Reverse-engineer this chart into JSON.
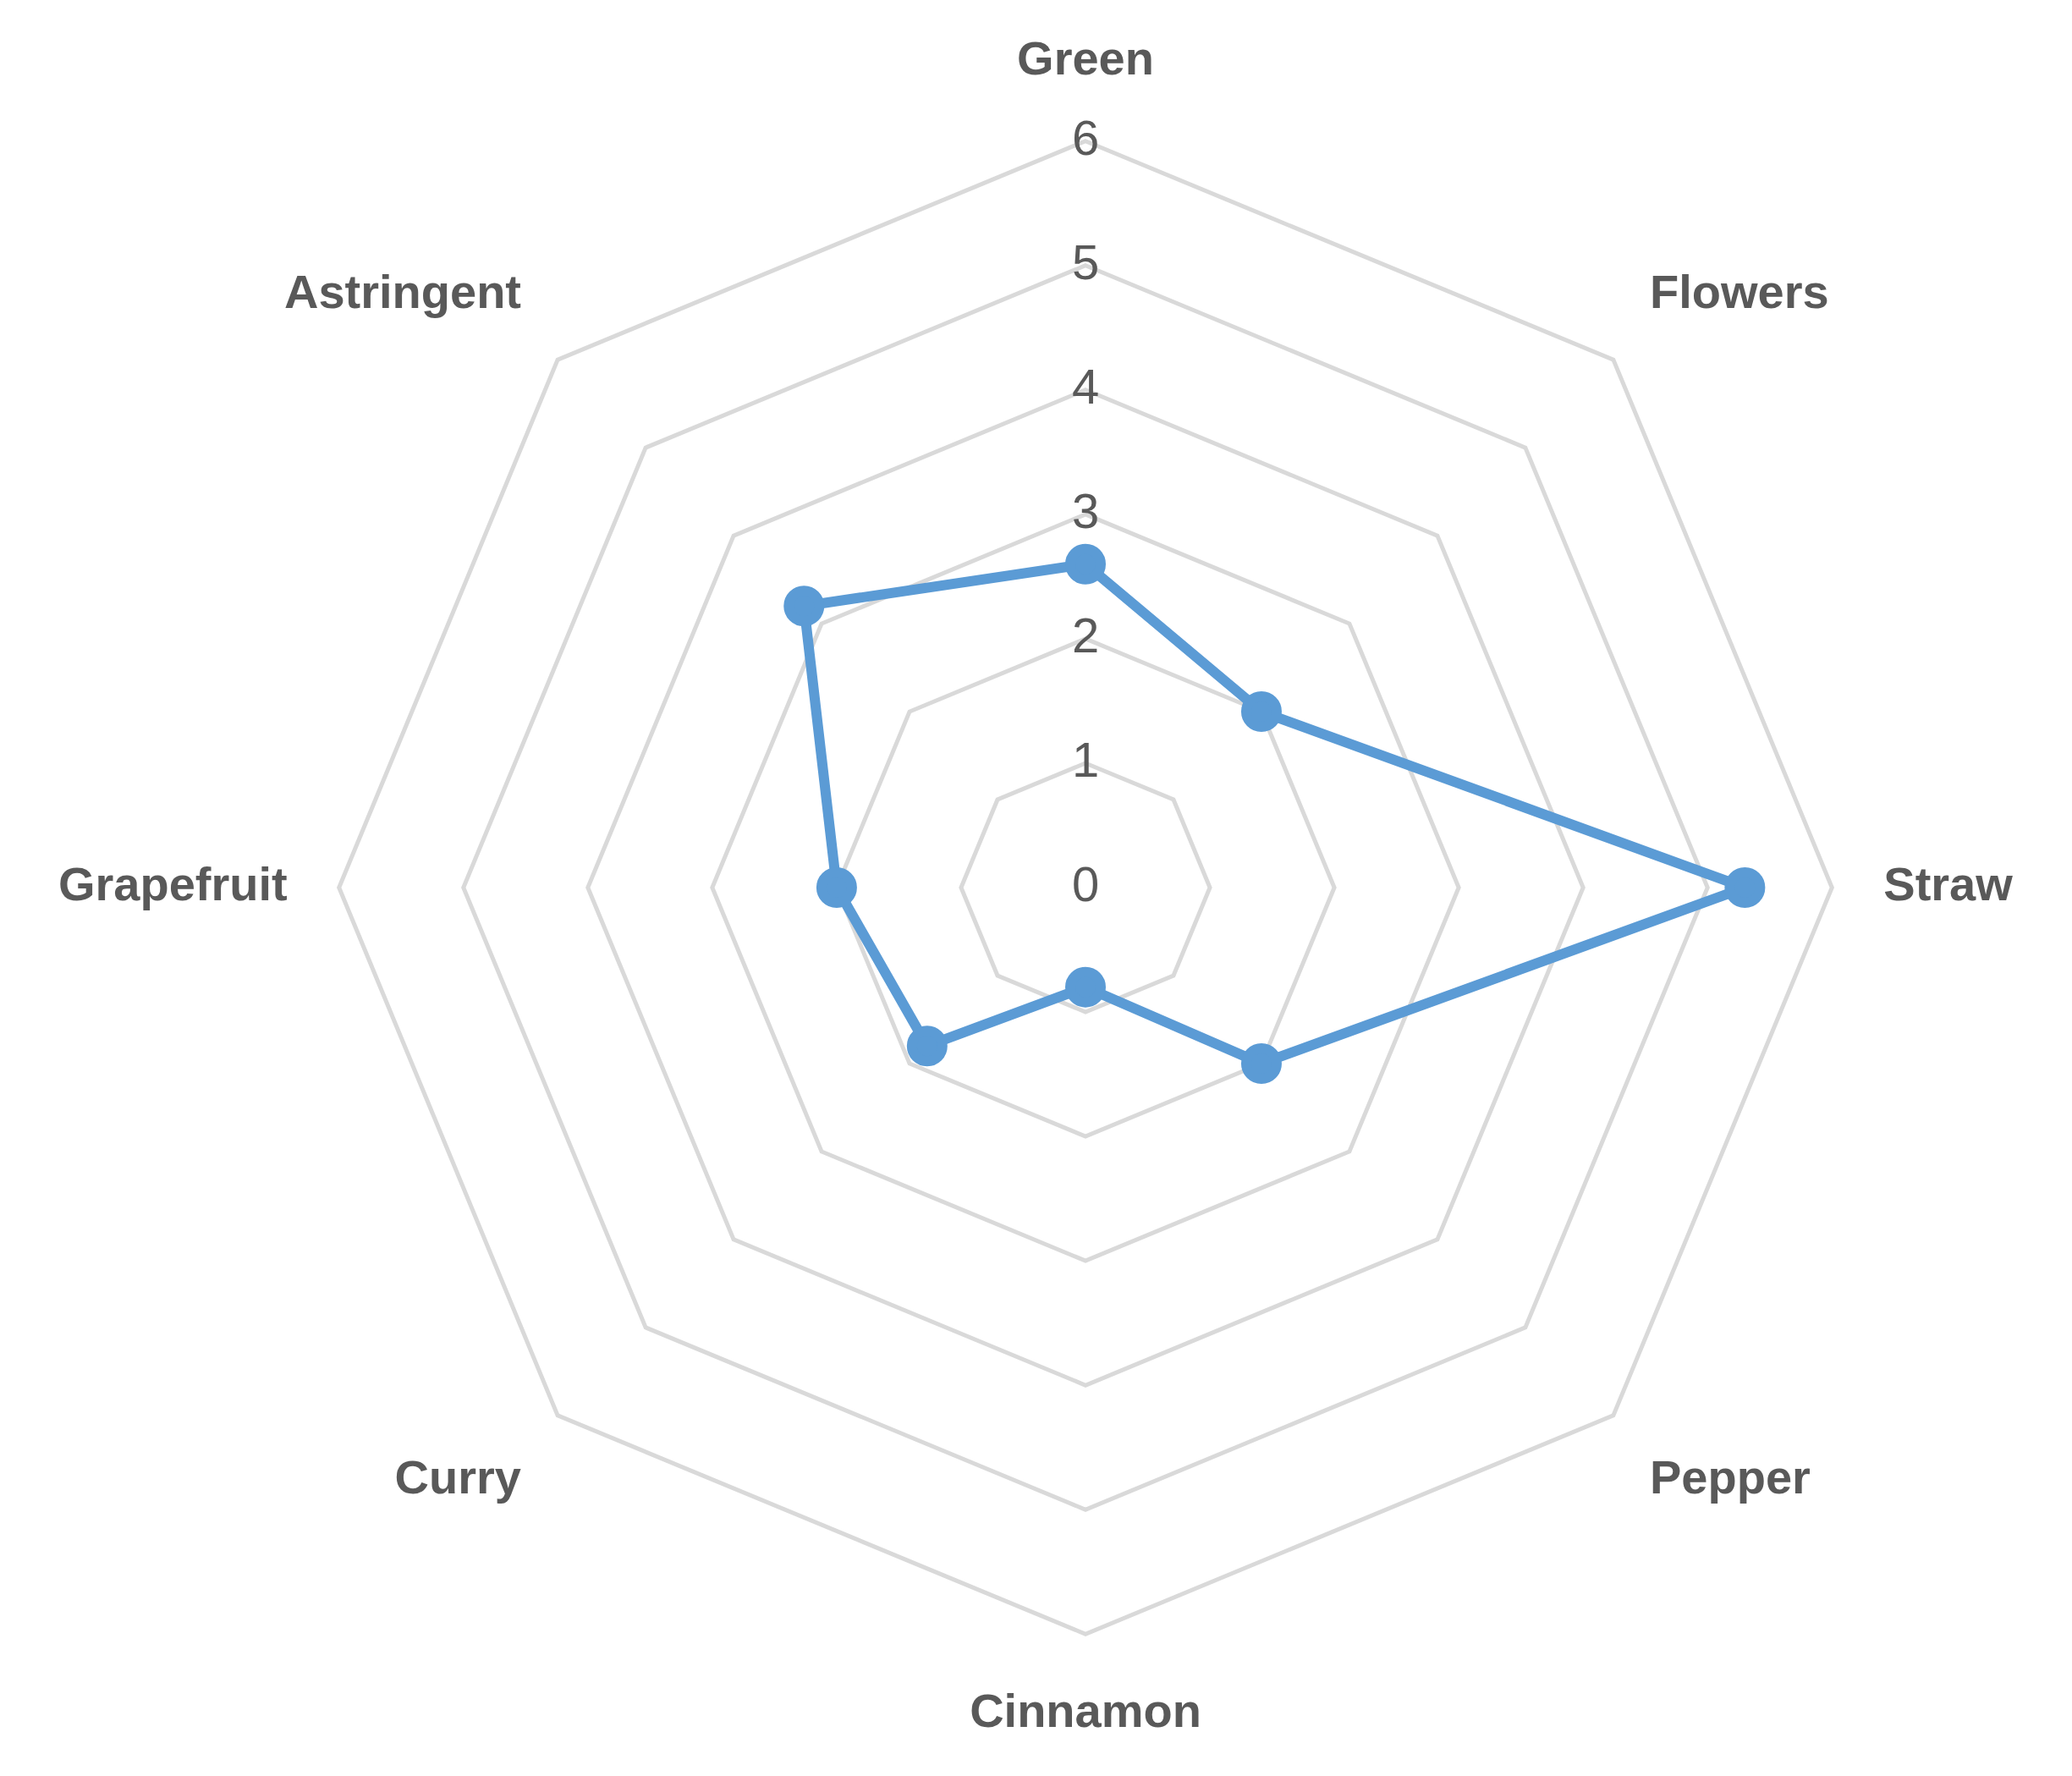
{
  "chart_data": {
    "type": "radar",
    "categories": [
      "Green",
      "Flowers",
      "Straw",
      "Pepper",
      "Cinnamon",
      "Curry",
      "Grapefruit",
      "Astringent"
    ],
    "series": [
      {
        "color": "#5b9bd5",
        "values": [
          2.6,
          2,
          5.3,
          2,
          0.8,
          1.8,
          2,
          3.2
        ]
      }
    ],
    "ylim": [
      0,
      6
    ],
    "yticks": [
      0,
      1,
      2,
      3,
      4,
      5,
      6
    ],
    "grid": true,
    "marker": "circle",
    "legend": false
  }
}
